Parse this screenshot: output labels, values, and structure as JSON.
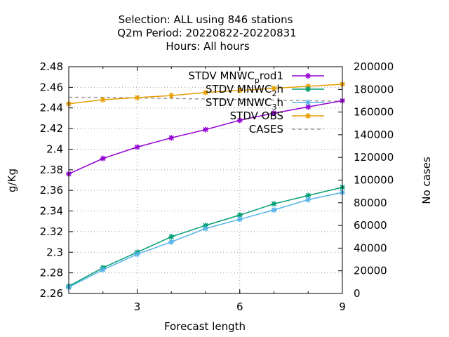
{
  "chart_data": {
    "type": "line",
    "title_lines": [
      "Selection: ALL using   846 stations",
      "Q2m   Period: 20220822-20220831",
      "Hours:  All hours"
    ],
    "xlabel": "Forecast length",
    "ylabel": "g/Kg",
    "y2label": "No cases",
    "xlim": [
      1,
      9
    ],
    "ylim": [
      2.26,
      2.48
    ],
    "y2lim": [
      0,
      200000
    ],
    "xticks": [
      3,
      6,
      9
    ],
    "yticks": [
      2.26,
      2.28,
      2.3,
      2.32,
      2.34,
      2.36,
      2.38,
      2.4,
      2.42,
      2.44,
      2.46,
      2.48
    ],
    "yticklabels": [
      "2.26",
      "2.28",
      "2.3",
      "2.32",
      "2.34",
      "2.36",
      "2.38",
      "2.4",
      "2.42",
      "2.44",
      "2.46",
      "2.48"
    ],
    "y2ticks": [
      0,
      20000,
      40000,
      60000,
      80000,
      100000,
      120000,
      140000,
      160000,
      180000,
      200000
    ],
    "grid": true,
    "legend_position": "top-right",
    "x": [
      1,
      2,
      3,
      4,
      5,
      6,
      7,
      8,
      9
    ],
    "series": [
      {
        "name_parts": [
          "STDV MNWC",
          "p",
          "rod1"
        ],
        "axis": "y",
        "color": "#9400d3",
        "marker": "star",
        "values": [
          2.376,
          2.391,
          2.402,
          2.411,
          2.419,
          2.428,
          2.435,
          2.441,
          2.447
        ]
      },
      {
        "name_parts": [
          "STDV MNWC",
          "2",
          "h"
        ],
        "axis": "y",
        "color": "#009e73",
        "marker": "star",
        "values": [
          2.267,
          2.285,
          2.3,
          2.315,
          2.326,
          2.336,
          2.347,
          2.355,
          2.363
        ]
      },
      {
        "name_parts": [
          "STDV MNWC",
          "3",
          "h"
        ],
        "axis": "y",
        "color": "#56b4e9",
        "marker": "star",
        "values": [
          2.266,
          2.283,
          2.298,
          2.31,
          2.323,
          2.332,
          2.341,
          2.351,
          2.358
        ]
      },
      {
        "name_parts": [
          "STDV OBS"
        ],
        "axis": "y",
        "color": "#e69f00",
        "marker": "star",
        "values": [
          2.444,
          2.448,
          2.45,
          2.452,
          2.455,
          2.457,
          2.459,
          2.461,
          2.463
        ]
      },
      {
        "name_parts": [
          "CASES"
        ],
        "axis": "y2",
        "color": "#999999",
        "marker": "none",
        "dashed": true,
        "values": [
          173000,
          173000,
          172500,
          172000,
          171500,
          171000,
          170500,
          170000,
          169500
        ]
      }
    ]
  }
}
